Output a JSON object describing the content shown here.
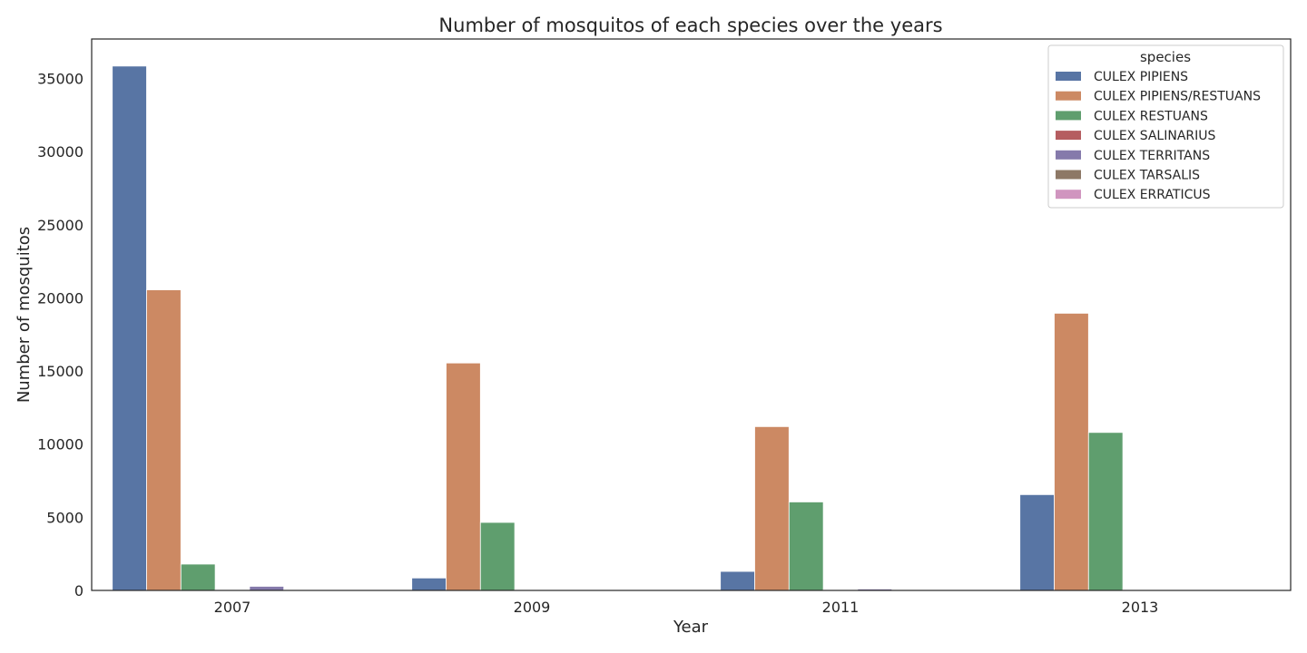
{
  "chart_data": {
    "type": "bar",
    "title": "Number of mosquitos of each species over the years",
    "xlabel": "Year",
    "ylabel": "Number of mosquitos",
    "categories": [
      "2007",
      "2009",
      "2011",
      "2013"
    ],
    "ylim": [
      0,
      37700
    ],
    "yticks": [
      "0",
      "5000",
      "10000",
      "15000",
      "20000",
      "25000",
      "30000",
      "35000"
    ],
    "grid": false,
    "legend": {
      "title": "species",
      "placement": "top-right"
    },
    "series": [
      {
        "name": "CULEX PIPIENS",
        "color": "#5875a4",
        "values": [
          35850,
          850,
          1300,
          6550
        ]
      },
      {
        "name": "CULEX PIPIENS/RESTUANS",
        "color": "#cc8963",
        "values": [
          20550,
          15550,
          11200,
          18950
        ]
      },
      {
        "name": "CULEX RESTUANS",
        "color": "#5f9e6e",
        "values": [
          1800,
          4650,
          6050,
          10800
        ]
      },
      {
        "name": "CULEX SALINARIUS",
        "color": "#b55d60",
        "values": [
          40,
          10,
          20,
          10
        ]
      },
      {
        "name": "CULEX TERRITANS",
        "color": "#857aab",
        "values": [
          280,
          20,
          100,
          20
        ]
      },
      {
        "name": "CULEX TARSALIS",
        "color": "#8d7866",
        "values": [
          5,
          0,
          0,
          0
        ]
      },
      {
        "name": "CULEX ERRATICUS",
        "color": "#d095bf",
        "values": [
          0,
          0,
          0,
          5
        ]
      }
    ]
  }
}
